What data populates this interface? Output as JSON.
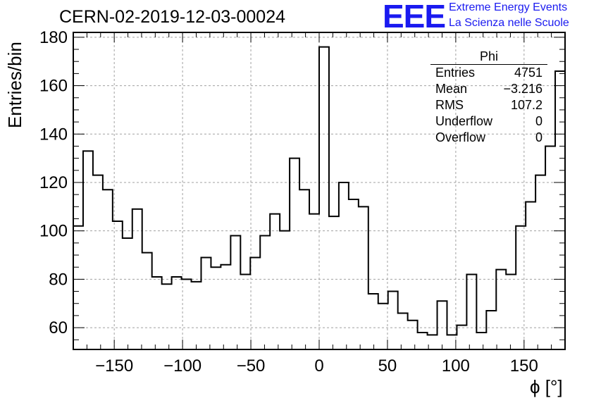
{
  "header": {
    "title": "CERN-02-2019-12-03-00024",
    "logo_text": "EEE",
    "logo_line1": "Extreme Energy Events",
    "logo_line2": "La Scienza nelle Scuole"
  },
  "stats_box": {
    "title": "Phi",
    "rows": [
      {
        "label": "Entries",
        "value": "4751"
      },
      {
        "label": "Mean",
        "value": "−3.216"
      },
      {
        "label": "RMS",
        "value": "107.2"
      },
      {
        "label": "Underflow",
        "value": "0"
      },
      {
        "label": "Overflow",
        "value": "0"
      }
    ]
  },
  "colors": {
    "logo": "#1a1af0",
    "line": "#000000",
    "grid": "#a0a0a0"
  },
  "chart_data": {
    "type": "bar",
    "style": "step-histogram",
    "title": "CERN-02-2019-12-03-00024",
    "xlabel": "ϕ [°]",
    "ylabel": "Entries/bin",
    "xlim": [
      -180,
      180
    ],
    "ylim": [
      51,
      182
    ],
    "bin_width": 7.2,
    "x_ticks": [
      -150,
      -100,
      -50,
      0,
      50,
      100,
      150
    ],
    "x_tick_labels": [
      "−150",
      "−100",
      "−50",
      "0",
      "50",
      "100",
      "150"
    ],
    "y_ticks": [
      60,
      80,
      100,
      120,
      140,
      160,
      180
    ],
    "y_tick_labels": [
      "60",
      "80",
      "100",
      "120",
      "140",
      "160",
      "180"
    ],
    "grid": true,
    "values": [
      102,
      133,
      123,
      117,
      104,
      97,
      109,
      91,
      81,
      78,
      81,
      80,
      79,
      89,
      85,
      86,
      98,
      82,
      89,
      98,
      107,
      100,
      130,
      117,
      107,
      176,
      106,
      120,
      113,
      110,
      74,
      70,
      75,
      66,
      63,
      58,
      57,
      71,
      57,
      61,
      82,
      58,
      67,
      84,
      82,
      102,
      112,
      123,
      135,
      166
    ]
  }
}
